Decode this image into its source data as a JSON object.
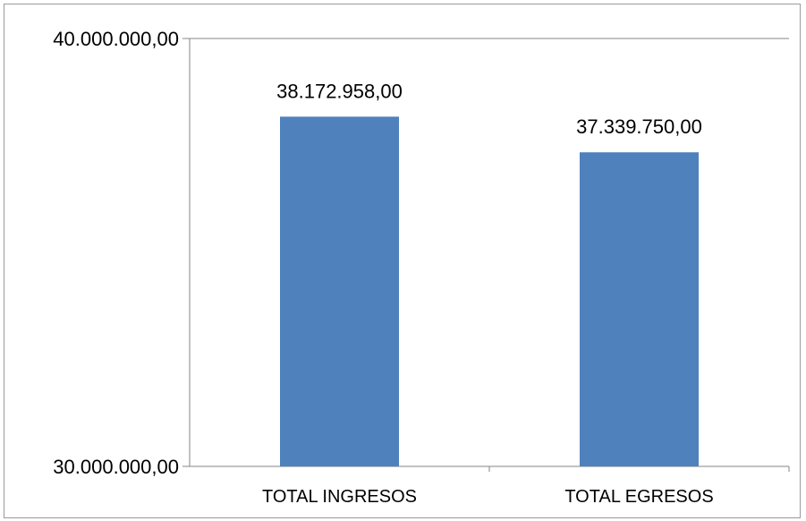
{
  "chart_data": {
    "type": "bar",
    "categories": [
      "TOTAL INGRESOS",
      "TOTAL EGRESOS"
    ],
    "values": [
      38172958,
      37339750
    ],
    "data_labels": [
      "38.172.958,00",
      "37.339.750,00"
    ],
    "ylim": [
      30000000,
      40000000
    ],
    "y_tick_labels": [
      "30.000.000,00",
      "40.000.000,00"
    ],
    "title": "",
    "xlabel": "",
    "ylabel": "",
    "grid": true,
    "legend": "none",
    "bar_color": "#4f81bd"
  }
}
